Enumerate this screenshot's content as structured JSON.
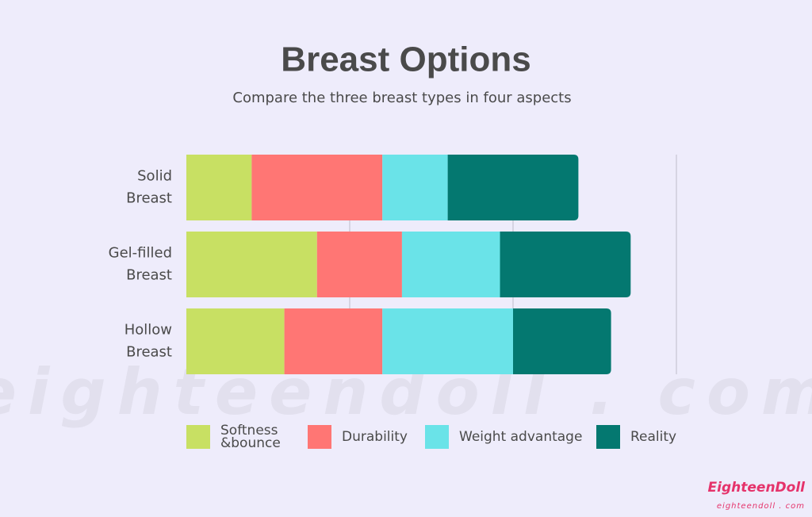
{
  "chart_data": {
    "type": "stacked-barh",
    "title": "Breast Options",
    "subtitle": "Compare the three breast types in four aspects",
    "categories": [
      "Solid Breast",
      "Gel-filled Breast",
      "Hollow Breast"
    ],
    "series": [
      {
        "name": "Softness &bounce",
        "color": "#c8e063",
        "values": [
          2,
          4,
          3
        ]
      },
      {
        "name": "Durability",
        "color": "#ff7674",
        "values": [
          4,
          2.6,
          3
        ]
      },
      {
        "name": "Weight advantage",
        "color": "#6ae3e8",
        "values": [
          2,
          3,
          4
        ]
      },
      {
        "name": "Reality",
        "color": "#047870",
        "values": [
          4,
          4,
          3
        ]
      }
    ],
    "xlim": [
      0,
      15
    ],
    "xticks": [
      5,
      10,
      15
    ],
    "grid": true
  },
  "watermark": "eighteendoll . com",
  "logo": {
    "name": "EighteenDoll",
    "url": "eighteendoll . com"
  }
}
